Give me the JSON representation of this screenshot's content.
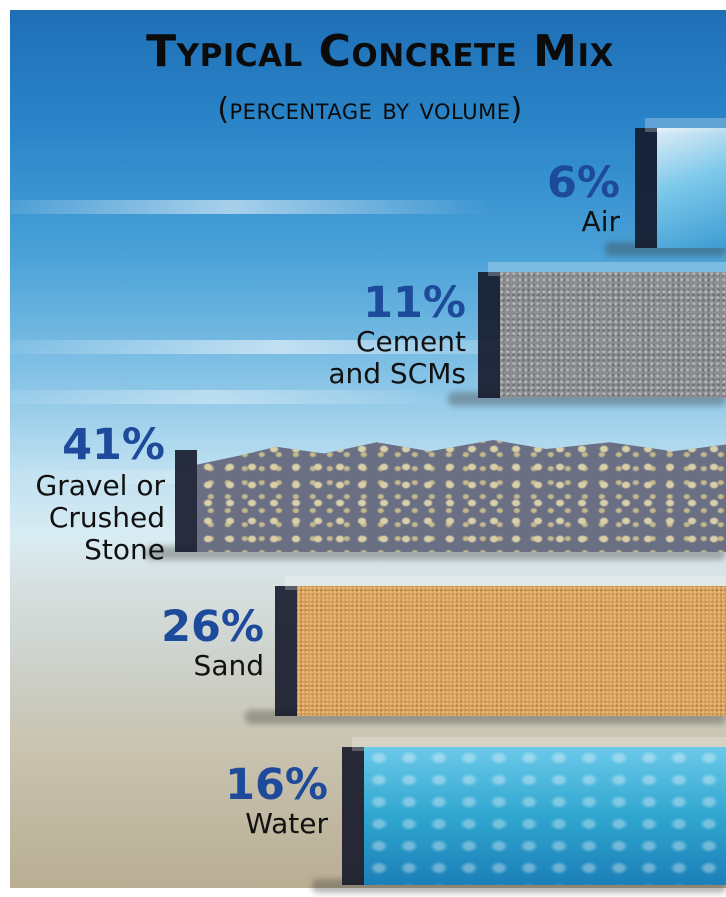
{
  "chart_data": {
    "type": "bar",
    "title": "Typical Concrete Mix",
    "subtitle": "(percentage by volume)",
    "unit": "%",
    "categories": [
      "Air",
      "Cement and SCMs",
      "Gravel or Crushed Stone",
      "Sand",
      "Water"
    ],
    "values": [
      6,
      11,
      41,
      26,
      16
    ],
    "labels": [
      {
        "pct": "6%",
        "lines": [
          "Air"
        ]
      },
      {
        "pct": "11%",
        "lines": [
          "Cement",
          "and SCMs"
        ]
      },
      {
        "pct": "41%",
        "lines": [
          "Gravel or",
          "Crushed",
          "Stone"
        ]
      },
      {
        "pct": "26%",
        "lines": [
          "Sand"
        ]
      },
      {
        "pct": "16%",
        "lines": [
          "Water"
        ]
      }
    ],
    "colors": {
      "Air": "#7cc8ea",
      "Cement and SCMs": "#8d8f93",
      "Gravel or Crushed Stone": "#6b6f84",
      "Sand": "#d39a55",
      "Water": "#2fa6cf"
    },
    "percent_color": "#1d4a9a",
    "orientation": "horizontal-stacked-slabs",
    "grid": false,
    "legend": "none"
  }
}
